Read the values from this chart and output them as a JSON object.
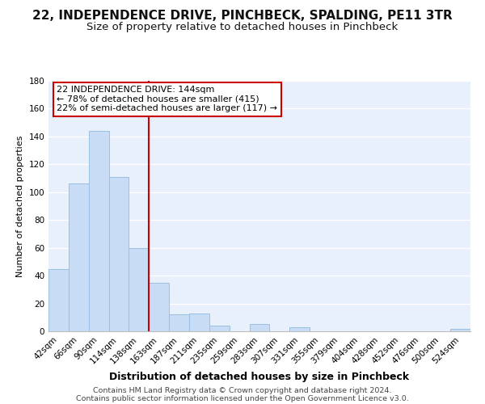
{
  "title": "22, INDEPENDENCE DRIVE, PINCHBECK, SPALDING, PE11 3TR",
  "subtitle": "Size of property relative to detached houses in Pinchbeck",
  "xlabel": "Distribution of detached houses by size in Pinchbeck",
  "ylabel": "Number of detached properties",
  "bar_labels": [
    "42sqm",
    "66sqm",
    "90sqm",
    "114sqm",
    "138sqm",
    "163sqm",
    "187sqm",
    "211sqm",
    "235sqm",
    "259sqm",
    "283sqm",
    "307sqm",
    "331sqm",
    "355sqm",
    "379sqm",
    "404sqm",
    "428sqm",
    "452sqm",
    "476sqm",
    "500sqm",
    "524sqm"
  ],
  "bar_heights": [
    45,
    106,
    144,
    111,
    60,
    35,
    12,
    13,
    4,
    0,
    5,
    0,
    3,
    0,
    0,
    0,
    0,
    0,
    0,
    0,
    2
  ],
  "bar_color": "#c8ddf5",
  "bar_edge_color": "#9bbfe0",
  "ylim": [
    0,
    180
  ],
  "yticks": [
    0,
    20,
    40,
    60,
    80,
    100,
    120,
    140,
    160,
    180
  ],
  "vline_x": 4.5,
  "annotation_title": "22 INDEPENDENCE DRIVE: 144sqm",
  "annotation_line1": "← 78% of detached houses are smaller (415)",
  "annotation_line2": "22% of semi-detached houses are larger (117) →",
  "footer_line1": "Contains HM Land Registry data © Crown copyright and database right 2024.",
  "footer_line2": "Contains public sector information licensed under the Open Government Licence v3.0.",
  "plot_bg_color": "#e8f0fc",
  "fig_bg_color": "#ffffff",
  "grid_color": "#ffffff",
  "vline_color": "#cc0000",
  "box_edge_color": "#cc0000",
  "title_fontsize": 11,
  "subtitle_fontsize": 9.5,
  "xlabel_fontsize": 9,
  "ylabel_fontsize": 8,
  "tick_fontsize": 7.5,
  "annotation_fontsize": 8,
  "footer_fontsize": 6.8
}
